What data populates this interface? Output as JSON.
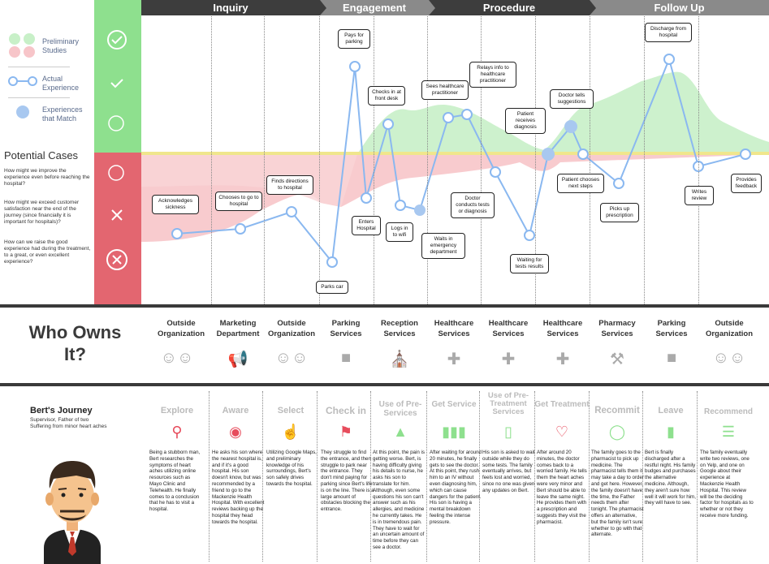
{
  "phases": [
    {
      "label": "Inquiry",
      "color": "#3d3d3d"
    },
    {
      "label": "Engagement",
      "color": "#8a8a8a"
    },
    {
      "label": "Procedure",
      "color": "#3d3d3d"
    },
    {
      "label": "Follow Up",
      "color": "#8a8a8a"
    }
  ],
  "legend": {
    "preliminary": "Preliminary\nStudies",
    "actual": "Actual\nExperience",
    "match": "Experiences\nthat Match"
  },
  "colors": {
    "green": "#8ee08e",
    "red": "#e8606a",
    "line": "#8ab8f0",
    "point": "#a8c8f0",
    "yellow": "#f0e68c"
  },
  "potential_cases": {
    "title": "Potential Cases",
    "questions": [
      "How might we improve the experience even before reaching the hospital?",
      "How might we exceed customer satisfaction near the end of the journey (since financially it is important for hospitals)?",
      "How can we raise the good experience had during the treatment, to a great, or even excellent experience?"
    ]
  },
  "callouts": [
    "Acknowledges sickness",
    "Chooses to go to hospital",
    "Finds directions to hospital",
    "Parks car",
    "Pays for parking",
    "Enters Hospital",
    "Checks in at front desk",
    "Logs in to wifi",
    "Waits in emergency department",
    "Sees healthcare practitioner",
    "Relays info to healthcare practitioner",
    "Doctor conducts tests or diagnosis",
    "Waiting for tests results",
    "Patient receives diagnosis",
    "Doctor tells suggestions",
    "Patient chooses next steps",
    "Picks up prescription",
    "Discharge from hospital",
    "Writes review",
    "Provides feedback"
  ],
  "who_owns": {
    "title": "Who Owns It?",
    "owners": [
      {
        "label": "Outside Organization",
        "icon": "group-icon"
      },
      {
        "label": "Marketing Department",
        "icon": "megaphone-icon"
      },
      {
        "label": "Outside Organization",
        "icon": "group-icon"
      },
      {
        "label": "Parking Services",
        "icon": "car-icon"
      },
      {
        "label": "Reception Services",
        "icon": "reception-icon"
      },
      {
        "label": "Healthcare Services",
        "icon": "medical-cross-icon"
      },
      {
        "label": "Healthcare Services",
        "icon": "medical-cross-icon"
      },
      {
        "label": "Healthcare Services",
        "icon": "medical-cross-icon"
      },
      {
        "label": "Pharmacy Services",
        "icon": "pharmacy-icon"
      },
      {
        "label": "Parking Services",
        "icon": "car-icon"
      },
      {
        "label": "Outside Organization",
        "icon": "group-icon"
      }
    ]
  },
  "journey": {
    "title": "Bert's Journey",
    "subtitle": "Supervisor, Father of two\nSuffering from minor heart aches",
    "stages": [
      {
        "label": "Explore",
        "icon": "magnifier-icon",
        "text": "Being a stubborn man, Bert researches the symptoms of heart aches utilizing online resources such as Mayo Clinic and Telehealth. He finally comes to a conclusion that he has to visit a hospital."
      },
      {
        "label": "Aware",
        "icon": "eye-icon",
        "text": "He asks his son where the nearest hospital is, and if it's a good hospital. His son doesn't know, but was recommended by a friend to go to the Mackenzie Health Hospital. With excellent reviews backing up the hospital they head towards the hospital."
      },
      {
        "label": "Select",
        "icon": "pointer-icon",
        "text": "Utilizing Google Maps, and preliminary knowledge of his surroundings, Bert's son safely drives towards the hospital."
      },
      {
        "label": "Check in",
        "icon": "location-check-icon",
        "text": "They struggle to find the entrance, and then struggle to park near the entrance. They don't mind paying for parking since Bert's life is on the line. There is a large amount of obstacles blocking the entrance."
      },
      {
        "label": "Use of Pre-Services",
        "icon": "bell-icon",
        "text": "At this point, the pain is getting worse. Bert, is having difficulty giving his details to nurse, he asks his son to translate for him. Although, even some questions his son can't answer such as his allergies, and medicine he currently takes. He is in tremendous pain. They have to wait for an uncertain amount of time before they can see a doctor."
      },
      {
        "label": "Get Service",
        "icon": "bars-icon",
        "text": "After waiting for around 20 minutes, he finally gets to see the doctor. At this point, they rush him to an IV without even diagnosing him, which can cause dangers for the patient. His son is having a mental breakdown feeling the intense pressure."
      },
      {
        "label": "Use of Pre-Treatment Services",
        "icon": "phone-icon",
        "text": "His son is asked to wait outside while they do some tests. The family eventually arrives, but feels lost and worried, since no one was given any updates on Bert."
      },
      {
        "label": "Get Treatment",
        "icon": "heart-icon",
        "text": "After around 20 minutes, the doctor comes back to a worried family. He tells them the heart aches were very minor and Bert should be able to leave the same night. He provides them with a prescription and suggests they visit the pharmacist."
      },
      {
        "label": "Recommit",
        "icon": "connect-icon",
        "text": "The family goes to the pharmacist to pick up medicine. The pharmacist tells them it may take a day to order and get here. However, the family doesn't have the time, the Father needs them after tonight. The pharmacist offers an alternative, but the family isn't sure whether to go with that alternate."
      },
      {
        "label": "Leave",
        "icon": "door-icon",
        "text": "Bert is finally discharged after a restful night. His family budges and purchases the alternative medicine. Although, they aren't sure how well it will work for him, they will have to see."
      },
      {
        "label": "Recommend",
        "icon": "list-icon",
        "text": "The family eventually write two reviews, one on Yelp, and one on Google about their experience at Mackenzie Health Hospital. This review will be the deciding factor for hospitals as to whether or not they receive more funding."
      }
    ]
  }
}
